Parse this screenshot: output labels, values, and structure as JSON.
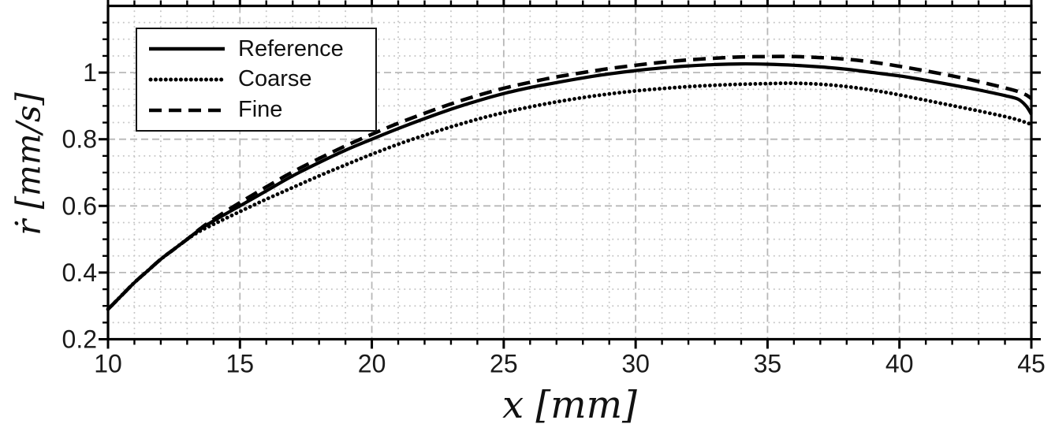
{
  "chart_data": {
    "type": "line",
    "title": "",
    "xlabel": "x [mm]",
    "ylabel": "ṙ [mm/s]",
    "xlim": [
      10,
      45
    ],
    "ylim": [
      0.2,
      1.2
    ],
    "x_ticks": [
      10,
      15,
      20,
      25,
      30,
      35,
      40,
      45
    ],
    "x_tick_labels": [
      "10",
      "15",
      "20",
      "25",
      "30",
      "35",
      "40",
      "45"
    ],
    "y_ticks": [
      0.2,
      0.4,
      0.6,
      0.8,
      1.0
    ],
    "y_tick_labels": [
      "0.2",
      "0.4",
      "0.6",
      "0.8",
      "1"
    ],
    "x_minor_step": 1,
    "y_minor_step": 0.05,
    "grid": "major+minor",
    "legend_position": "top-left",
    "x": [
      10,
      10.5,
      11,
      11.5,
      12,
      12.5,
      13,
      13.5,
      14,
      15,
      16,
      17,
      18,
      19,
      20,
      21,
      22,
      23,
      24,
      25,
      26,
      27,
      28,
      29,
      30,
      31,
      32,
      33,
      34,
      35,
      36,
      37,
      38,
      39,
      40,
      41,
      42,
      43,
      44,
      44.5,
      44.8,
      45
    ],
    "series": [
      {
        "name": "Reference",
        "style": "solid",
        "color": "#000000",
        "values": [
          0.29,
          0.33,
          0.37,
          0.405,
          0.44,
          0.47,
          0.5,
          0.53,
          0.555,
          0.6,
          0.645,
          0.69,
          0.73,
          0.767,
          0.8,
          0.832,
          0.862,
          0.89,
          0.915,
          0.937,
          0.955,
          0.97,
          0.984,
          0.996,
          1.006,
          1.014,
          1.02,
          1.024,
          1.026,
          1.025,
          1.022,
          1.017,
          1.01,
          1.0,
          0.99,
          0.977,
          0.963,
          0.948,
          0.931,
          0.92,
          0.9,
          0.875
        ]
      },
      {
        "name": "Coarse",
        "style": "dotted",
        "color": "#000000",
        "values": [
          0.29,
          0.33,
          0.37,
          0.405,
          0.44,
          0.47,
          0.5,
          0.525,
          0.545,
          0.583,
          0.62,
          0.655,
          0.69,
          0.723,
          0.755,
          0.785,
          0.812,
          0.837,
          0.86,
          0.88,
          0.897,
          0.912,
          0.925,
          0.936,
          0.945,
          0.952,
          0.958,
          0.962,
          0.965,
          0.967,
          0.968,
          0.965,
          0.958,
          0.947,
          0.933,
          0.917,
          0.901,
          0.885,
          0.868,
          0.858,
          0.85,
          0.845
        ]
      },
      {
        "name": "Fine",
        "style": "dashed",
        "color": "#000000",
        "values": [
          0.29,
          0.33,
          0.37,
          0.405,
          0.44,
          0.47,
          0.5,
          0.532,
          0.56,
          0.61,
          0.657,
          0.702,
          0.742,
          0.78,
          0.815,
          0.848,
          0.878,
          0.906,
          0.931,
          0.953,
          0.971,
          0.987,
          1.0,
          1.012,
          1.022,
          1.031,
          1.038,
          1.043,
          1.047,
          1.048,
          1.048,
          1.045,
          1.04,
          1.031,
          1.019,
          1.005,
          0.99,
          0.973,
          0.954,
          0.943,
          0.933,
          0.922
        ]
      }
    ]
  },
  "legend": {
    "entries": [
      {
        "label": "Reference",
        "style": "solid"
      },
      {
        "label": "Coarse",
        "style": "dotted"
      },
      {
        "label": "Fine",
        "style": "dashed"
      }
    ]
  },
  "colors": {
    "curve": "#000000",
    "axis": "#000000",
    "grid_major": "#b8b8b8",
    "grid_minor": "#c6c6c6",
    "background": "#ffffff",
    "text": "#1a1a1a"
  }
}
